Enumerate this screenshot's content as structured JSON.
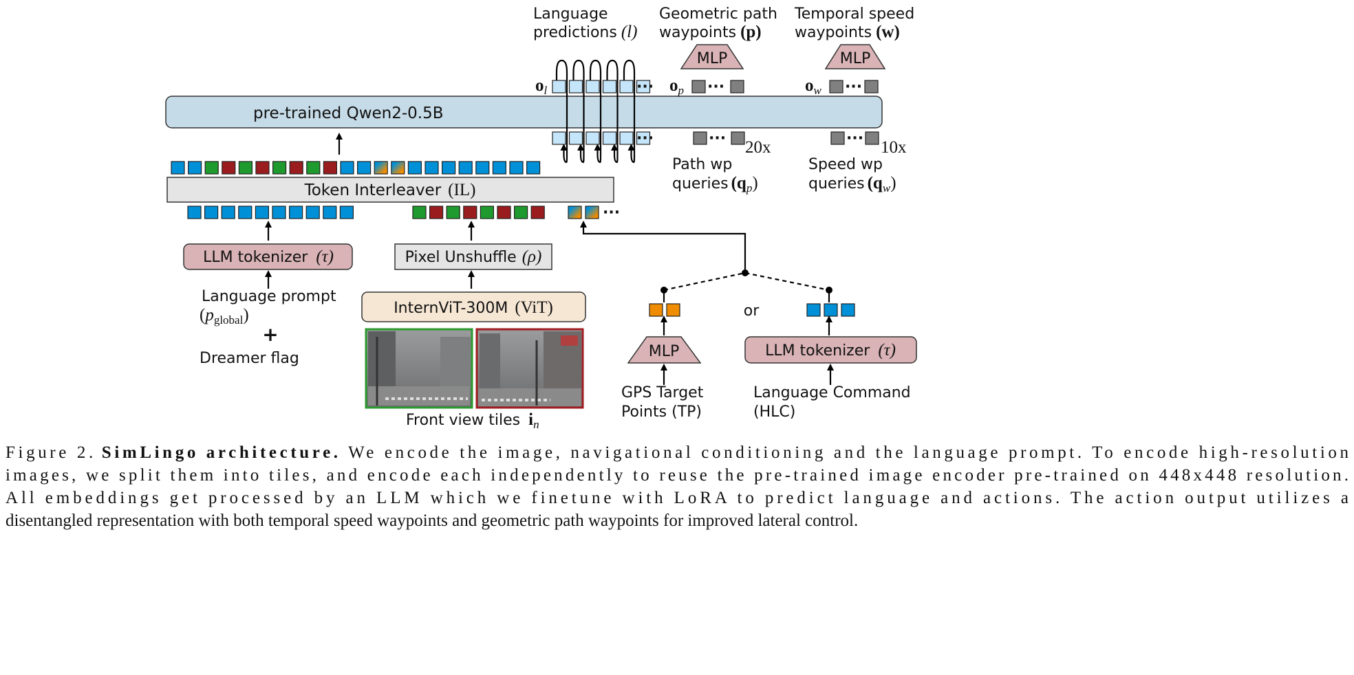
{
  "figure": {
    "llm": {
      "label": "pre-trained Qwen2-0.5B"
    },
    "interleaver": {
      "label": "Token Interleaver",
      "math": "(IL)"
    },
    "tokenizer_left": {
      "label": "LLM tokenizer",
      "math": "(τ)"
    },
    "pixel_unshuffle": {
      "label": "Pixel Unshuffle",
      "math": "(ρ)"
    },
    "vit": {
      "label": "InternViT-300M",
      "math": "(ViT)"
    },
    "language_prompt": {
      "line1": "Language prompt",
      "math_open": "(",
      "math_p": "p",
      "math_sub": "global",
      "math_close": ")",
      "plus": "+",
      "line3": "Dreamer flag"
    },
    "front_view": {
      "label": "Front view tiles",
      "math": "i",
      "sub": "n"
    },
    "or_label": "or",
    "gps": {
      "mlp": "MLP",
      "line1": "GPS Target",
      "line2": "Points (TP)"
    },
    "command": {
      "tokenizer": "LLM tokenizer",
      "math": "(τ)",
      "line1": "Language Command",
      "line2": "(HLC)"
    },
    "outputs": {
      "language": {
        "line1": "Language",
        "line2": "predictions",
        "math": "(l)",
        "o": "o",
        "o_sub": "l"
      },
      "path": {
        "line1": "Geometric path",
        "line2": "waypoints",
        "math": "(p)",
        "mlp": "MLP",
        "o": "o",
        "o_sub": "p"
      },
      "speed": {
        "line1": "Temporal speed",
        "line2": "waypoints",
        "math": "(w)",
        "mlp": "MLP",
        "o": "o",
        "o_sub": "w"
      }
    },
    "queries": {
      "path": {
        "line1": "Path wp",
        "line2": "queries",
        "math": "(q",
        "sub": "p",
        "close": ")",
        "count": "20x"
      },
      "speed": {
        "line1": "Speed wp",
        "line2": "queries",
        "math": "(q",
        "sub": "w",
        "close": ")",
        "count": "10x"
      }
    },
    "ellipsis": "···",
    "token_sequence": [
      "blue",
      "blue",
      "green",
      "red",
      "green",
      "red",
      "green",
      "red",
      "green",
      "red",
      "blue",
      "blue",
      "mixed",
      "mixed",
      "blue",
      "blue",
      "blue",
      "blue",
      "blue",
      "blue",
      "blue",
      "blue"
    ],
    "colors": {
      "blue": "#0090d8",
      "green": "#1e9a2e",
      "red": "#9b1c1f",
      "orange": "#f08c00",
      "light_blue": "#c5e6fa",
      "gray": "#808080",
      "llm_box": "#c5dbe7",
      "tokenizer_box": "#d9b3b5",
      "interleaver_box": "#e5e5e5",
      "vit_box": "#f6e7d4",
      "tile1_border": "#2a9a2e",
      "tile2_border": "#a01c20"
    }
  },
  "caption": {
    "prefix": "Figure 2.",
    "title": "SimLingo architecture.",
    "line1": " We encode the image, navigational conditioning and the language prompt. To encode high-resolution",
    "line2": "images, we split them into tiles, and encode each independently to reuse the pre-trained image encoder pre-trained on 448x448 resolution.",
    "line3": "All embeddings get processed by an LLM which we finetune with LoRA to predict language and actions. The action output utilizes a",
    "line4": "disentangled representation with both temporal speed waypoints and geometric path waypoints for improved lateral control."
  }
}
